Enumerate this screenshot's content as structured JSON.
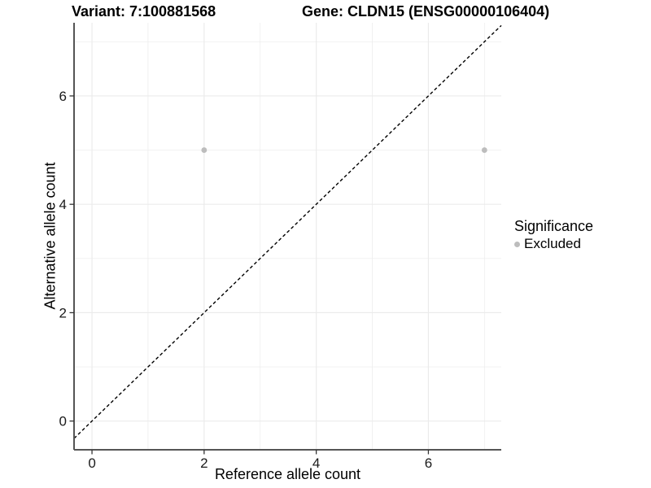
{
  "chart_data": {
    "type": "scatter",
    "titles": [
      "Variant: 7:100881568",
      "Gene: CLDN15 (ENSG00000106404)"
    ],
    "xlabel": "Reference allele count",
    "ylabel": "Alternative allele count",
    "xlim": [
      -0.32,
      7.3
    ],
    "ylim": [
      -0.53,
      7.35
    ],
    "x_major_ticks": [
      0,
      2,
      4,
      6
    ],
    "y_major_ticks": [
      0,
      2,
      4,
      6
    ],
    "x_minor_ticks": [
      1,
      3,
      5,
      7
    ],
    "y_minor_ticks": [
      1,
      3,
      5,
      7
    ],
    "grid": true,
    "points": [
      {
        "x": 2,
        "y": 5,
        "significance": "Excluded"
      },
      {
        "x": 7,
        "y": 5,
        "significance": "Excluded"
      }
    ],
    "identity_line": {
      "slope": 1,
      "intercept": 0,
      "style": "dashed"
    },
    "legend": {
      "title": "Significance",
      "position": "right",
      "items": [
        {
          "label": "Excluded",
          "color": "#bdbdbd"
        }
      ]
    },
    "colors": {
      "excluded_point": "#bdbdbd",
      "gridline": "#ebebeb",
      "axis_line": "#555555",
      "tick_mark": "#333333",
      "tick_label": "#1a1a1a",
      "dashed_line": "#000000"
    }
  }
}
